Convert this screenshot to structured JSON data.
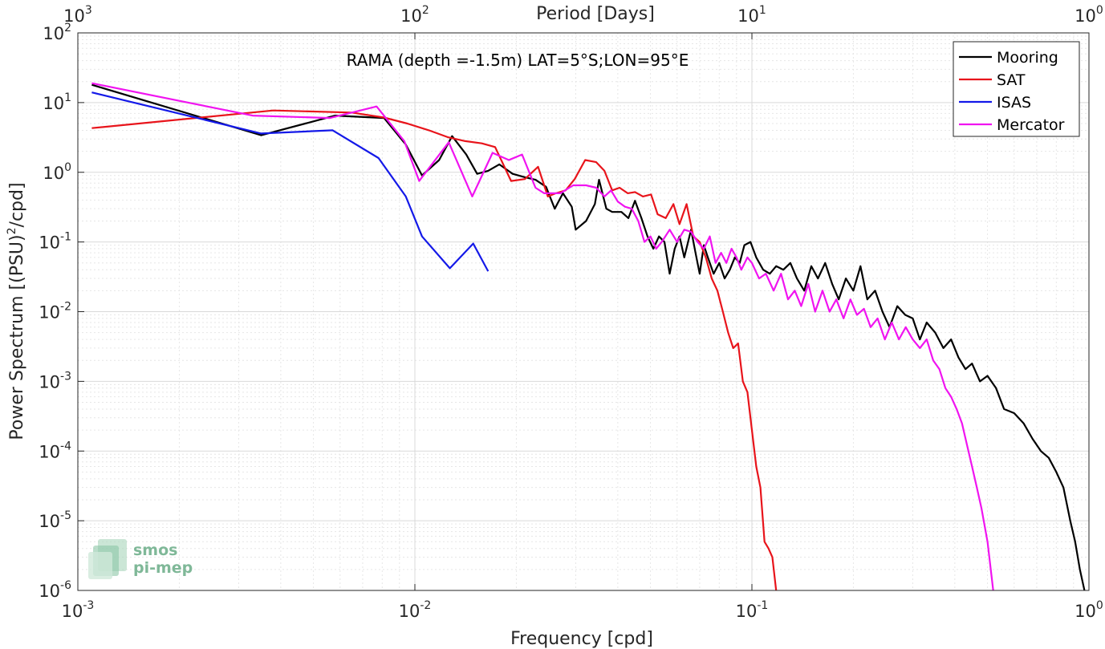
{
  "chart_data": {
    "type": "line",
    "title": "RAMA (depth =-1.5m) LAT=5°S;LON=95°E",
    "xlabel": "Frequency [cpd]",
    "ylabel_main": "Power Spectrum [(PSU)",
    "ylabel_sup": "2",
    "ylabel_tail": "/cpd]",
    "top_xlabel": "Period [Days]",
    "xscale": "log",
    "yscale": "log",
    "xlim": [
      0.001,
      1
    ],
    "ylim": [
      1e-06,
      100
    ],
    "grid": true,
    "legend_position": "top-right",
    "x_ticks": [
      {
        "value": 0.001,
        "base": "10",
        "exp": "-3"
      },
      {
        "value": 0.01,
        "base": "10",
        "exp": "-2"
      },
      {
        "value": 0.1,
        "base": "10",
        "exp": "-1"
      },
      {
        "value": 1,
        "base": "10",
        "exp": "0"
      }
    ],
    "y_ticks": [
      {
        "value": 100,
        "base": "10",
        "exp": "2"
      },
      {
        "value": 10,
        "base": "10",
        "exp": "1"
      },
      {
        "value": 1,
        "base": "10",
        "exp": "0"
      },
      {
        "value": 0.1,
        "base": "10",
        "exp": "-1"
      },
      {
        "value": 0.01,
        "base": "10",
        "exp": "-2"
      },
      {
        "value": 0.001,
        "base": "10",
        "exp": "-3"
      },
      {
        "value": 0.0001,
        "base": "10",
        "exp": "-4"
      },
      {
        "value": 1e-05,
        "base": "10",
        "exp": "-5"
      },
      {
        "value": 1e-06,
        "base": "10",
        "exp": "-6"
      }
    ],
    "top_ticks": [
      {
        "freq": 0.001,
        "base": "10",
        "exp": "3"
      },
      {
        "freq": 0.01,
        "base": "10",
        "exp": "2"
      },
      {
        "freq": 0.1,
        "base": "10",
        "exp": "1"
      },
      {
        "freq": 1,
        "base": "10",
        "exp": "0"
      }
    ],
    "series": [
      {
        "name": "Mooring",
        "color": "#000000",
        "points": [
          [
            0.0011,
            18
          ],
          [
            0.0035,
            3.4
          ],
          [
            0.0058,
            6.5
          ],
          [
            0.0081,
            6.0
          ],
          [
            0.0094,
            2.5
          ],
          [
            0.0105,
            0.9
          ],
          [
            0.0118,
            1.5
          ],
          [
            0.0129,
            3.3
          ],
          [
            0.0142,
            1.8
          ],
          [
            0.0153,
            0.95
          ],
          [
            0.0165,
            1.05
          ],
          [
            0.0178,
            1.3
          ],
          [
            0.0195,
            0.95
          ],
          [
            0.0212,
            0.85
          ],
          [
            0.0228,
            0.78
          ],
          [
            0.0245,
            0.62
          ],
          [
            0.026,
            0.3
          ],
          [
            0.0275,
            0.5
          ],
          [
            0.0292,
            0.32
          ],
          [
            0.03,
            0.15
          ],
          [
            0.0322,
            0.2
          ],
          [
            0.0342,
            0.35
          ],
          [
            0.0352,
            0.78
          ],
          [
            0.037,
            0.3
          ],
          [
            0.0385,
            0.27
          ],
          [
            0.041,
            0.27
          ],
          [
            0.043,
            0.22
          ],
          [
            0.045,
            0.39
          ],
          [
            0.047,
            0.22
          ],
          [
            0.049,
            0.12
          ],
          [
            0.051,
            0.08
          ],
          [
            0.053,
            0.12
          ],
          [
            0.055,
            0.1
          ],
          [
            0.057,
            0.035
          ],
          [
            0.059,
            0.08
          ],
          [
            0.061,
            0.12
          ],
          [
            0.063,
            0.06
          ],
          [
            0.066,
            0.15
          ],
          [
            0.068,
            0.07
          ],
          [
            0.07,
            0.035
          ],
          [
            0.072,
            0.09
          ],
          [
            0.074,
            0.06
          ],
          [
            0.077,
            0.035
          ],
          [
            0.08,
            0.05
          ],
          [
            0.083,
            0.03
          ],
          [
            0.086,
            0.04
          ],
          [
            0.089,
            0.06
          ],
          [
            0.092,
            0.05
          ],
          [
            0.095,
            0.09
          ],
          [
            0.099,
            0.1
          ],
          [
            0.103,
            0.06
          ],
          [
            0.108,
            0.04
          ],
          [
            0.113,
            0.035
          ],
          [
            0.118,
            0.045
          ],
          [
            0.124,
            0.04
          ],
          [
            0.13,
            0.05
          ],
          [
            0.136,
            0.03
          ],
          [
            0.143,
            0.02
          ],
          [
            0.15,
            0.045
          ],
          [
            0.157,
            0.03
          ],
          [
            0.165,
            0.05
          ],
          [
            0.173,
            0.025
          ],
          [
            0.181,
            0.015
          ],
          [
            0.19,
            0.03
          ],
          [
            0.2,
            0.02
          ],
          [
            0.21,
            0.045
          ],
          [
            0.22,
            0.015
          ],
          [
            0.232,
            0.02
          ],
          [
            0.244,
            0.01
          ],
          [
            0.256,
            0.006
          ],
          [
            0.27,
            0.012
          ],
          [
            0.285,
            0.009
          ],
          [
            0.3,
            0.008
          ],
          [
            0.315,
            0.004
          ],
          [
            0.33,
            0.007
          ],
          [
            0.35,
            0.005
          ],
          [
            0.37,
            0.003
          ],
          [
            0.39,
            0.004
          ],
          [
            0.41,
            0.0022
          ],
          [
            0.43,
            0.0015
          ],
          [
            0.45,
            0.0018
          ],
          [
            0.475,
            0.001
          ],
          [
            0.5,
            0.0012
          ],
          [
            0.53,
            0.0008
          ],
          [
            0.56,
            0.0004
          ],
          [
            0.6,
            0.00035
          ],
          [
            0.64,
            0.00025
          ],
          [
            0.68,
            0.00015
          ],
          [
            0.72,
            0.0001
          ],
          [
            0.76,
            8e-05
          ],
          [
            0.8,
            5e-05
          ],
          [
            0.84,
            3e-05
          ],
          [
            0.88,
            1e-05
          ],
          [
            0.91,
            5e-06
          ],
          [
            0.94,
            2e-06
          ],
          [
            0.97,
            1e-06
          ]
        ]
      },
      {
        "name": "SAT",
        "color": "#e8141b",
        "points": [
          [
            0.0011,
            4.3
          ],
          [
            0.0038,
            7.7
          ],
          [
            0.0065,
            7.2
          ],
          [
            0.0081,
            6.1
          ],
          [
            0.0095,
            5.0
          ],
          [
            0.011,
            4.0
          ],
          [
            0.0125,
            3.2
          ],
          [
            0.0141,
            2.8
          ],
          [
            0.0158,
            2.6
          ],
          [
            0.0173,
            2.3
          ],
          [
            0.0193,
            0.75
          ],
          [
            0.0212,
            0.8
          ],
          [
            0.0232,
            1.2
          ],
          [
            0.0248,
            0.45
          ],
          [
            0.0262,
            0.5
          ],
          [
            0.028,
            0.55
          ],
          [
            0.0298,
            0.8
          ],
          [
            0.032,
            1.5
          ],
          [
            0.0345,
            1.4
          ],
          [
            0.0365,
            1.05
          ],
          [
            0.0385,
            0.55
          ],
          [
            0.0405,
            0.6
          ],
          [
            0.0428,
            0.5
          ],
          [
            0.045,
            0.52
          ],
          [
            0.0475,
            0.45
          ],
          [
            0.0502,
            0.48
          ],
          [
            0.0525,
            0.25
          ],
          [
            0.0555,
            0.22
          ],
          [
            0.0585,
            0.35
          ],
          [
            0.061,
            0.18
          ],
          [
            0.064,
            0.35
          ],
          [
            0.067,
            0.12
          ],
          [
            0.07,
            0.1
          ],
          [
            0.073,
            0.06
          ],
          [
            0.076,
            0.03
          ],
          [
            0.079,
            0.02
          ],
          [
            0.082,
            0.01
          ],
          [
            0.085,
            0.005
          ],
          [
            0.088,
            0.003
          ],
          [
            0.091,
            0.0035
          ],
          [
            0.094,
            0.001
          ],
          [
            0.097,
            0.0007
          ],
          [
            0.1,
            0.0002
          ],
          [
            0.103,
            6e-05
          ],
          [
            0.106,
            3e-05
          ],
          [
            0.109,
            5e-06
          ],
          [
            0.112,
            4e-06
          ],
          [
            0.115,
            3e-06
          ],
          [
            0.118,
            1e-06
          ]
        ]
      },
      {
        "name": "ISAS",
        "color": "#1419e8",
        "points": [
          [
            0.0011,
            14
          ],
          [
            0.0035,
            3.6
          ],
          [
            0.0057,
            4.0
          ],
          [
            0.0078,
            1.6
          ],
          [
            0.0094,
            0.45
          ],
          [
            0.0105,
            0.12
          ],
          [
            0.0127,
            0.042
          ],
          [
            0.0149,
            0.095
          ],
          [
            0.0165,
            0.038
          ]
        ]
      },
      {
        "name": "Mercator",
        "color": "#f014f0",
        "points": [
          [
            0.0011,
            19
          ],
          [
            0.0033,
            6.5
          ],
          [
            0.0056,
            6.0
          ],
          [
            0.0077,
            8.8
          ],
          [
            0.0093,
            2.8
          ],
          [
            0.0103,
            0.75
          ],
          [
            0.0126,
            2.7
          ],
          [
            0.0148,
            0.45
          ],
          [
            0.017,
            1.9
          ],
          [
            0.019,
            1.5
          ],
          [
            0.0208,
            1.8
          ],
          [
            0.0228,
            0.6
          ],
          [
            0.0242,
            0.5
          ],
          [
            0.027,
            0.5
          ],
          [
            0.0295,
            0.65
          ],
          [
            0.0322,
            0.65
          ],
          [
            0.0345,
            0.6
          ],
          [
            0.0365,
            0.45
          ],
          [
            0.0382,
            0.55
          ],
          [
            0.04,
            0.38
          ],
          [
            0.042,
            0.32
          ],
          [
            0.044,
            0.3
          ],
          [
            0.046,
            0.2
          ],
          [
            0.048,
            0.1
          ],
          [
            0.05,
            0.12
          ],
          [
            0.052,
            0.08
          ],
          [
            0.054,
            0.1
          ],
          [
            0.057,
            0.15
          ],
          [
            0.06,
            0.1
          ],
          [
            0.063,
            0.15
          ],
          [
            0.066,
            0.14
          ],
          [
            0.069,
            0.1
          ],
          [
            0.072,
            0.08
          ],
          [
            0.075,
            0.12
          ],
          [
            0.078,
            0.05
          ],
          [
            0.081,
            0.07
          ],
          [
            0.084,
            0.05
          ],
          [
            0.087,
            0.08
          ],
          [
            0.09,
            0.06
          ],
          [
            0.093,
            0.04
          ],
          [
            0.097,
            0.06
          ],
          [
            0.1,
            0.05
          ],
          [
            0.105,
            0.03
          ],
          [
            0.11,
            0.035
          ],
          [
            0.116,
            0.02
          ],
          [
            0.122,
            0.035
          ],
          [
            0.128,
            0.015
          ],
          [
            0.134,
            0.02
          ],
          [
            0.14,
            0.012
          ],
          [
            0.147,
            0.025
          ],
          [
            0.154,
            0.01
          ],
          [
            0.162,
            0.02
          ],
          [
            0.17,
            0.01
          ],
          [
            0.178,
            0.015
          ],
          [
            0.187,
            0.008
          ],
          [
            0.196,
            0.015
          ],
          [
            0.205,
            0.009
          ],
          [
            0.215,
            0.011
          ],
          [
            0.225,
            0.006
          ],
          [
            0.236,
            0.008
          ],
          [
            0.248,
            0.004
          ],
          [
            0.26,
            0.007
          ],
          [
            0.273,
            0.004
          ],
          [
            0.286,
            0.006
          ],
          [
            0.3,
            0.004
          ],
          [
            0.315,
            0.003
          ],
          [
            0.33,
            0.004
          ],
          [
            0.345,
            0.002
          ],
          [
            0.36,
            0.0015
          ],
          [
            0.375,
            0.0008
          ],
          [
            0.39,
            0.0006
          ],
          [
            0.405,
            0.0004
          ],
          [
            0.42,
            0.00025
          ],
          [
            0.435,
            0.00012
          ],
          [
            0.45,
            6e-05
          ],
          [
            0.465,
            3e-05
          ],
          [
            0.48,
            1.5e-05
          ],
          [
            0.5,
            5e-06
          ],
          [
            0.52,
            1e-06
          ]
        ]
      }
    ]
  },
  "logo": {
    "line1": "smos",
    "line2": "pi-mep"
  }
}
